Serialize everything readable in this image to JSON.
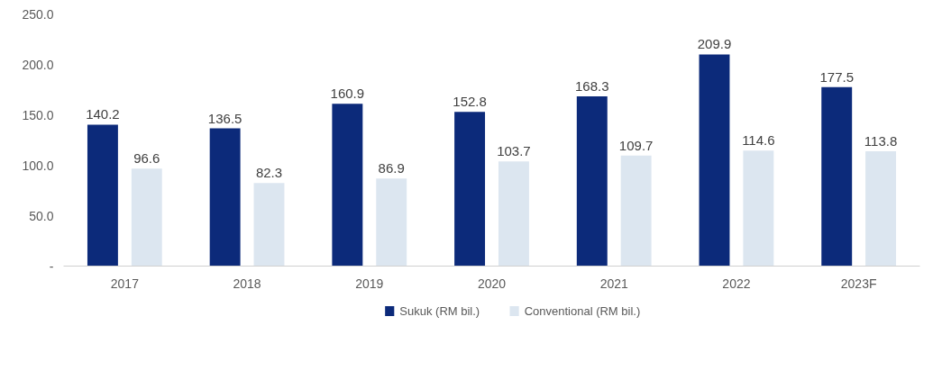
{
  "chart_data": {
    "type": "bar",
    "categories": [
      "2017",
      "2018",
      "2019",
      "2020",
      "2021",
      "2022",
      "2023F"
    ],
    "series": [
      {
        "name": "Sukuk (RM bil.)",
        "color": "#0c2a7a",
        "values": [
          140.2,
          136.5,
          160.9,
          152.8,
          168.3,
          209.9,
          177.5
        ]
      },
      {
        "name": "Conventional (RM bil.)",
        "color": "#dce6f0",
        "values": [
          96.6,
          82.3,
          86.9,
          103.7,
          109.7,
          114.6,
          113.8
        ]
      }
    ],
    "ylim": [
      0,
      250
    ],
    "yticks": [
      {
        "value": 0,
        "label": "-"
      },
      {
        "value": 50,
        "label": "50.0"
      },
      {
        "value": 100,
        "label": "100.0"
      },
      {
        "value": 150,
        "label": "150.0"
      },
      {
        "value": 200,
        "label": "200.0"
      },
      {
        "value": 250,
        "label": "250.0"
      }
    ],
    "data_labels": true,
    "grid": false,
    "legend": "bottom"
  }
}
